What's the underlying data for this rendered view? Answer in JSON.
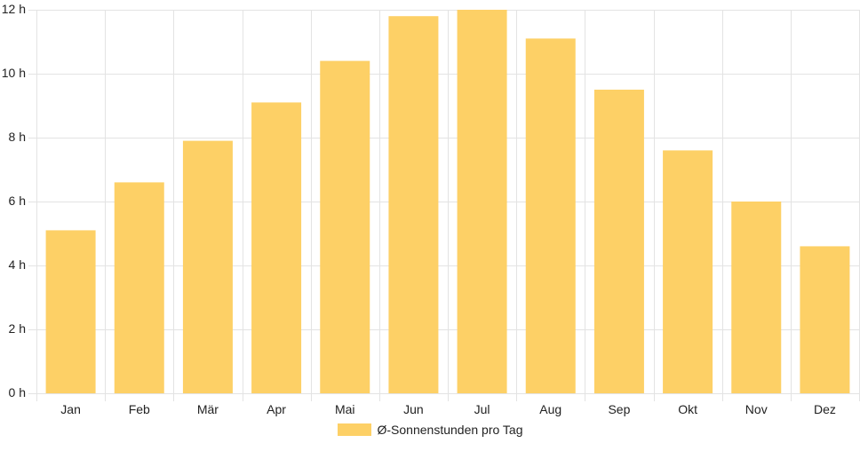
{
  "chart_data": {
    "type": "bar",
    "categories": [
      "Jan",
      "Feb",
      "Mär",
      "Apr",
      "Mai",
      "Jun",
      "Jul",
      "Aug",
      "Sep",
      "Okt",
      "Nov",
      "Dez"
    ],
    "series": [
      {
        "name": "Ø-Sonnenstunden pro Tag",
        "values": [
          5.1,
          6.6,
          7.9,
          9.1,
          10.4,
          11.8,
          12.0,
          11.1,
          9.5,
          7.6,
          6.0,
          4.6
        ]
      }
    ],
    "ylim": [
      0,
      12
    ],
    "y_ticks": [
      {
        "value": 0,
        "label": "0 h"
      },
      {
        "value": 2,
        "label": "2 h"
      },
      {
        "value": 4,
        "label": "4 h"
      },
      {
        "value": 6,
        "label": "6 h"
      },
      {
        "value": 8,
        "label": "8 h"
      },
      {
        "value": 10,
        "label": "10 h"
      },
      {
        "value": 12,
        "label": "12 h"
      }
    ],
    "grid": true,
    "legend_position": "bottom",
    "bar_color": "#fdd066",
    "grid_color": "#e3e3e3"
  }
}
